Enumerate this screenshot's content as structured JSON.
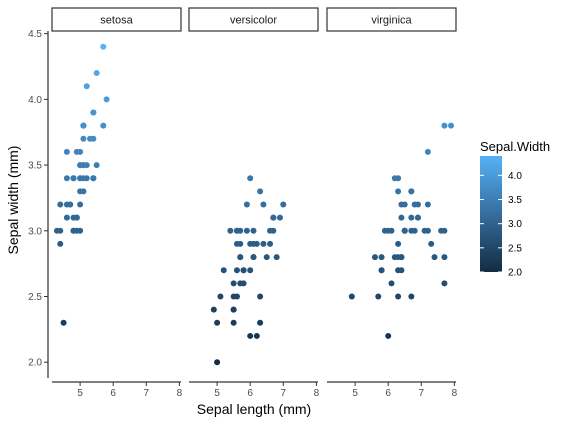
{
  "chart_data": {
    "type": "scatter",
    "facet_by": "Species",
    "facets": [
      {
        "name": "setosa",
        "points": [
          [
            5.1,
            3.5
          ],
          [
            4.9,
            3.0
          ],
          [
            4.7,
            3.2
          ],
          [
            4.6,
            3.1
          ],
          [
            5.0,
            3.6
          ],
          [
            5.4,
            3.9
          ],
          [
            4.6,
            3.4
          ],
          [
            5.0,
            3.4
          ],
          [
            4.4,
            2.9
          ],
          [
            4.9,
            3.1
          ],
          [
            5.4,
            3.7
          ],
          [
            4.8,
            3.4
          ],
          [
            4.8,
            3.0
          ],
          [
            4.3,
            3.0
          ],
          [
            5.8,
            4.0
          ],
          [
            5.7,
            4.4
          ],
          [
            5.4,
            3.9
          ],
          [
            5.1,
            3.5
          ],
          [
            5.7,
            3.8
          ],
          [
            5.1,
            3.8
          ],
          [
            5.4,
            3.4
          ],
          [
            5.1,
            3.7
          ],
          [
            4.6,
            3.6
          ],
          [
            5.1,
            3.3
          ],
          [
            4.8,
            3.4
          ],
          [
            5.0,
            3.0
          ],
          [
            5.0,
            3.4
          ],
          [
            5.2,
            3.5
          ],
          [
            5.2,
            3.4
          ],
          [
            4.7,
            3.2
          ],
          [
            4.8,
            3.1
          ],
          [
            5.4,
            3.4
          ],
          [
            5.2,
            4.1
          ],
          [
            5.5,
            4.2
          ],
          [
            4.9,
            3.1
          ],
          [
            5.0,
            3.2
          ],
          [
            5.5,
            3.5
          ],
          [
            4.9,
            3.6
          ],
          [
            4.4,
            3.0
          ],
          [
            5.1,
            3.4
          ],
          [
            5.0,
            3.5
          ],
          [
            4.5,
            2.3
          ],
          [
            4.4,
            3.2
          ],
          [
            5.0,
            3.5
          ],
          [
            5.1,
            3.8
          ],
          [
            4.8,
            3.0
          ],
          [
            5.1,
            3.8
          ],
          [
            4.6,
            3.2
          ],
          [
            5.3,
            3.7
          ],
          [
            5.0,
            3.3
          ]
        ]
      },
      {
        "name": "versicolor",
        "points": [
          [
            7.0,
            3.2
          ],
          [
            6.4,
            3.2
          ],
          [
            6.9,
            3.1
          ],
          [
            5.5,
            2.3
          ],
          [
            6.5,
            2.8
          ],
          [
            5.7,
            2.8
          ],
          [
            6.3,
            3.3
          ],
          [
            4.9,
            2.4
          ],
          [
            6.6,
            2.9
          ],
          [
            5.2,
            2.7
          ],
          [
            5.0,
            2.0
          ],
          [
            5.9,
            3.0
          ],
          [
            6.0,
            2.2
          ],
          [
            6.1,
            2.9
          ],
          [
            5.6,
            2.9
          ],
          [
            6.7,
            3.1
          ],
          [
            5.6,
            3.0
          ],
          [
            5.8,
            2.7
          ],
          [
            6.2,
            2.2
          ],
          [
            5.6,
            2.5
          ],
          [
            5.9,
            3.2
          ],
          [
            6.1,
            2.8
          ],
          [
            6.3,
            2.5
          ],
          [
            6.1,
            2.8
          ],
          [
            6.4,
            2.9
          ],
          [
            6.6,
            3.0
          ],
          [
            6.8,
            2.8
          ],
          [
            6.7,
            3.0
          ],
          [
            6.0,
            2.9
          ],
          [
            5.7,
            2.6
          ],
          [
            5.5,
            2.4
          ],
          [
            5.5,
            2.4
          ],
          [
            5.8,
            2.7
          ],
          [
            6.0,
            2.7
          ],
          [
            5.4,
            3.0
          ],
          [
            6.0,
            3.4
          ],
          [
            6.7,
            3.1
          ],
          [
            6.3,
            2.3
          ],
          [
            5.6,
            3.0
          ],
          [
            5.5,
            2.5
          ],
          [
            5.5,
            2.6
          ],
          [
            6.1,
            3.0
          ],
          [
            5.8,
            2.6
          ],
          [
            5.0,
            2.3
          ],
          [
            5.6,
            2.7
          ],
          [
            5.7,
            3.0
          ],
          [
            5.7,
            2.9
          ],
          [
            6.2,
            2.9
          ],
          [
            5.1,
            2.5
          ],
          [
            5.7,
            2.8
          ]
        ]
      },
      {
        "name": "virginica",
        "points": [
          [
            6.3,
            3.3
          ],
          [
            5.8,
            2.7
          ],
          [
            7.1,
            3.0
          ],
          [
            6.3,
            2.9
          ],
          [
            6.5,
            3.0
          ],
          [
            7.6,
            3.0
          ],
          [
            4.9,
            2.5
          ],
          [
            7.3,
            2.9
          ],
          [
            6.7,
            2.5
          ],
          [
            7.2,
            3.6
          ],
          [
            6.5,
            3.2
          ],
          [
            6.4,
            2.7
          ],
          [
            6.8,
            3.0
          ],
          [
            5.7,
            2.5
          ],
          [
            5.8,
            2.8
          ],
          [
            6.4,
            3.2
          ],
          [
            6.5,
            3.0
          ],
          [
            7.7,
            3.8
          ],
          [
            7.7,
            2.6
          ],
          [
            6.0,
            2.2
          ],
          [
            6.9,
            3.2
          ],
          [
            5.6,
            2.8
          ],
          [
            7.7,
            2.8
          ],
          [
            6.3,
            2.7
          ],
          [
            6.7,
            3.3
          ],
          [
            7.2,
            3.2
          ],
          [
            6.2,
            2.8
          ],
          [
            6.1,
            3.0
          ],
          [
            6.4,
            2.8
          ],
          [
            7.2,
            3.0
          ],
          [
            7.4,
            2.8
          ],
          [
            7.9,
            3.8
          ],
          [
            6.4,
            2.8
          ],
          [
            6.3,
            2.8
          ],
          [
            6.1,
            2.6
          ],
          [
            7.7,
            3.0
          ],
          [
            6.3,
            3.4
          ],
          [
            6.4,
            3.1
          ],
          [
            6.0,
            3.0
          ],
          [
            6.9,
            3.1
          ],
          [
            6.7,
            3.1
          ],
          [
            6.9,
            3.1
          ],
          [
            5.8,
            2.7
          ],
          [
            6.8,
            3.2
          ],
          [
            6.7,
            3.3
          ],
          [
            6.7,
            3.0
          ],
          [
            6.3,
            2.5
          ],
          [
            6.5,
            3.0
          ],
          [
            6.2,
            3.4
          ],
          [
            5.9,
            3.0
          ]
        ]
      }
    ],
    "xlabel": "Sepal length (mm)",
    "ylabel": "Sepal width (mm)",
    "xlim": [
      4.15,
      8.05
    ],
    "ylim": [
      1.88,
      4.52
    ],
    "xticks": [
      5,
      6,
      7,
      8
    ],
    "yticks": [
      2.0,
      2.5,
      3.0,
      3.5,
      4.0,
      4.5
    ],
    "ytick_labels": [
      "2.0",
      "2.5",
      "3.0",
      "3.5",
      "4.0",
      "4.5"
    ],
    "color_by": "Sepal.Width",
    "color_scale": {
      "low": "#132B43",
      "high": "#56B1F7",
      "range": [
        2.0,
        4.4
      ],
      "breaks": [
        2.0,
        2.5,
        3.0,
        3.5,
        4.0
      ],
      "break_labels": [
        "2.0",
        "2.5",
        "3.0",
        "3.5",
        "4.0"
      ]
    },
    "legend_title": "Sepal.Width",
    "legend_position": "right",
    "grid": false
  }
}
